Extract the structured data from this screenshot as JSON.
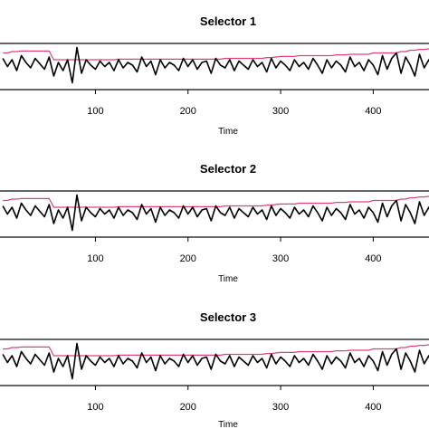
{
  "chart_data": [
    {
      "type": "line",
      "title": "Selector 1",
      "xlabel": "Time",
      "ylabel": "",
      "xlim": [
        -5,
        470
      ],
      "xticks": [
        100,
        200,
        300,
        400
      ],
      "series": [
        {
          "color": "#000000",
          "values": "black"
        },
        {
          "color": "#e0407a",
          "values": "pink"
        }
      ]
    },
    {
      "type": "line",
      "title": "Selector 2",
      "xlabel": "Time",
      "ylabel": "",
      "xlim": [
        -5,
        470
      ],
      "xticks": [
        100,
        200,
        300,
        400
      ],
      "series": [
        {
          "color": "#000000",
          "values": "black"
        },
        {
          "color": "#e0407a",
          "values": "pink"
        }
      ]
    },
    {
      "type": "line",
      "title": "Selector 3",
      "xlabel": "Time",
      "ylabel": "",
      "xlim": [
        -5,
        470
      ],
      "xticks": [
        100,
        200,
        300,
        400
      ],
      "series": [
        {
          "color": "#000000",
          "values": "black"
        },
        {
          "color": "#e0407a",
          "values": "pink"
        }
      ]
    }
  ],
  "series_values": {
    "x": [
      0,
      5,
      10,
      15,
      20,
      25,
      30,
      35,
      40,
      45,
      50,
      55,
      60,
      65,
      70,
      75,
      80,
      85,
      90,
      95,
      100,
      105,
      110,
      115,
      120,
      125,
      130,
      135,
      140,
      145,
      150,
      155,
      160,
      165,
      170,
      175,
      180,
      185,
      190,
      195,
      200,
      205,
      210,
      215,
      220,
      225,
      230,
      235,
      240,
      245,
      250,
      255,
      260,
      265,
      270,
      275,
      280,
      285,
      290,
      295,
      300,
      305,
      310,
      315,
      320,
      325,
      330,
      335,
      340,
      345,
      350,
      355,
      360,
      365,
      370,
      375,
      380,
      385,
      390,
      395,
      400,
      405,
      410,
      415,
      420,
      425,
      430,
      435,
      440,
      445,
      450,
      455,
      460,
      465,
      470
    ],
    "black": [
      0.35,
      0.05,
      0.3,
      -0.1,
      0.45,
      0.2,
      0.0,
      0.35,
      0.15,
      -0.05,
      0.4,
      -0.3,
      0.2,
      -0.1,
      0.3,
      -0.55,
      0.75,
      -0.2,
      0.3,
      0.1,
      -0.05,
      0.25,
      0.05,
      0.2,
      -0.1,
      0.3,
      0.0,
      0.2,
      0.1,
      -0.15,
      0.4,
      0.05,
      0.25,
      -0.25,
      0.3,
      0.0,
      0.2,
      0.1,
      -0.1,
      0.35,
      0.05,
      0.3,
      -0.05,
      0.2,
      0.25,
      -0.2,
      0.35,
      0.1,
      0.0,
      0.3,
      -0.1,
      0.25,
      0.1,
      -0.05,
      0.3,
      0.05,
      0.2,
      -0.15,
      0.35,
      0.0,
      0.25,
      0.1,
      -0.1,
      0.3,
      0.05,
      0.2,
      -0.05,
      0.35,
      0.1,
      -0.2,
      0.3,
      0.0,
      0.25,
      0.1,
      -0.15,
      0.4,
      0.05,
      0.2,
      -0.1,
      0.3,
      0.1,
      -0.25,
      0.45,
      -0.05,
      0.35,
      0.55,
      -0.2,
      0.4,
      0.1,
      -0.3,
      0.5,
      0.0,
      0.3,
      -0.15,
      0.35
    ],
    "pink": [
      0.55,
      0.55,
      0.6,
      0.6,
      0.62,
      0.62,
      0.62,
      0.62,
      0.62,
      0.62,
      0.62,
      0.3,
      0.3,
      0.3,
      0.3,
      0.3,
      0.3,
      0.3,
      0.3,
      0.3,
      0.3,
      0.3,
      0.3,
      0.3,
      0.3,
      0.32,
      0.32,
      0.32,
      0.32,
      0.32,
      0.32,
      0.32,
      0.32,
      0.32,
      0.32,
      0.32,
      0.32,
      0.32,
      0.32,
      0.32,
      0.32,
      0.32,
      0.32,
      0.32,
      0.32,
      0.32,
      0.32,
      0.32,
      0.35,
      0.35,
      0.35,
      0.35,
      0.35,
      0.35,
      0.35,
      0.35,
      0.35,
      0.38,
      0.38,
      0.4,
      0.42,
      0.42,
      0.42,
      0.42,
      0.45,
      0.45,
      0.45,
      0.45,
      0.45,
      0.45,
      0.45,
      0.45,
      0.48,
      0.48,
      0.48,
      0.5,
      0.5,
      0.5,
      0.5,
      0.5,
      0.55,
      0.55,
      0.55,
      0.55,
      0.55,
      0.55,
      0.6,
      0.6,
      0.65,
      0.65,
      0.68,
      0.68,
      0.7,
      0.72,
      0.72
    ]
  }
}
